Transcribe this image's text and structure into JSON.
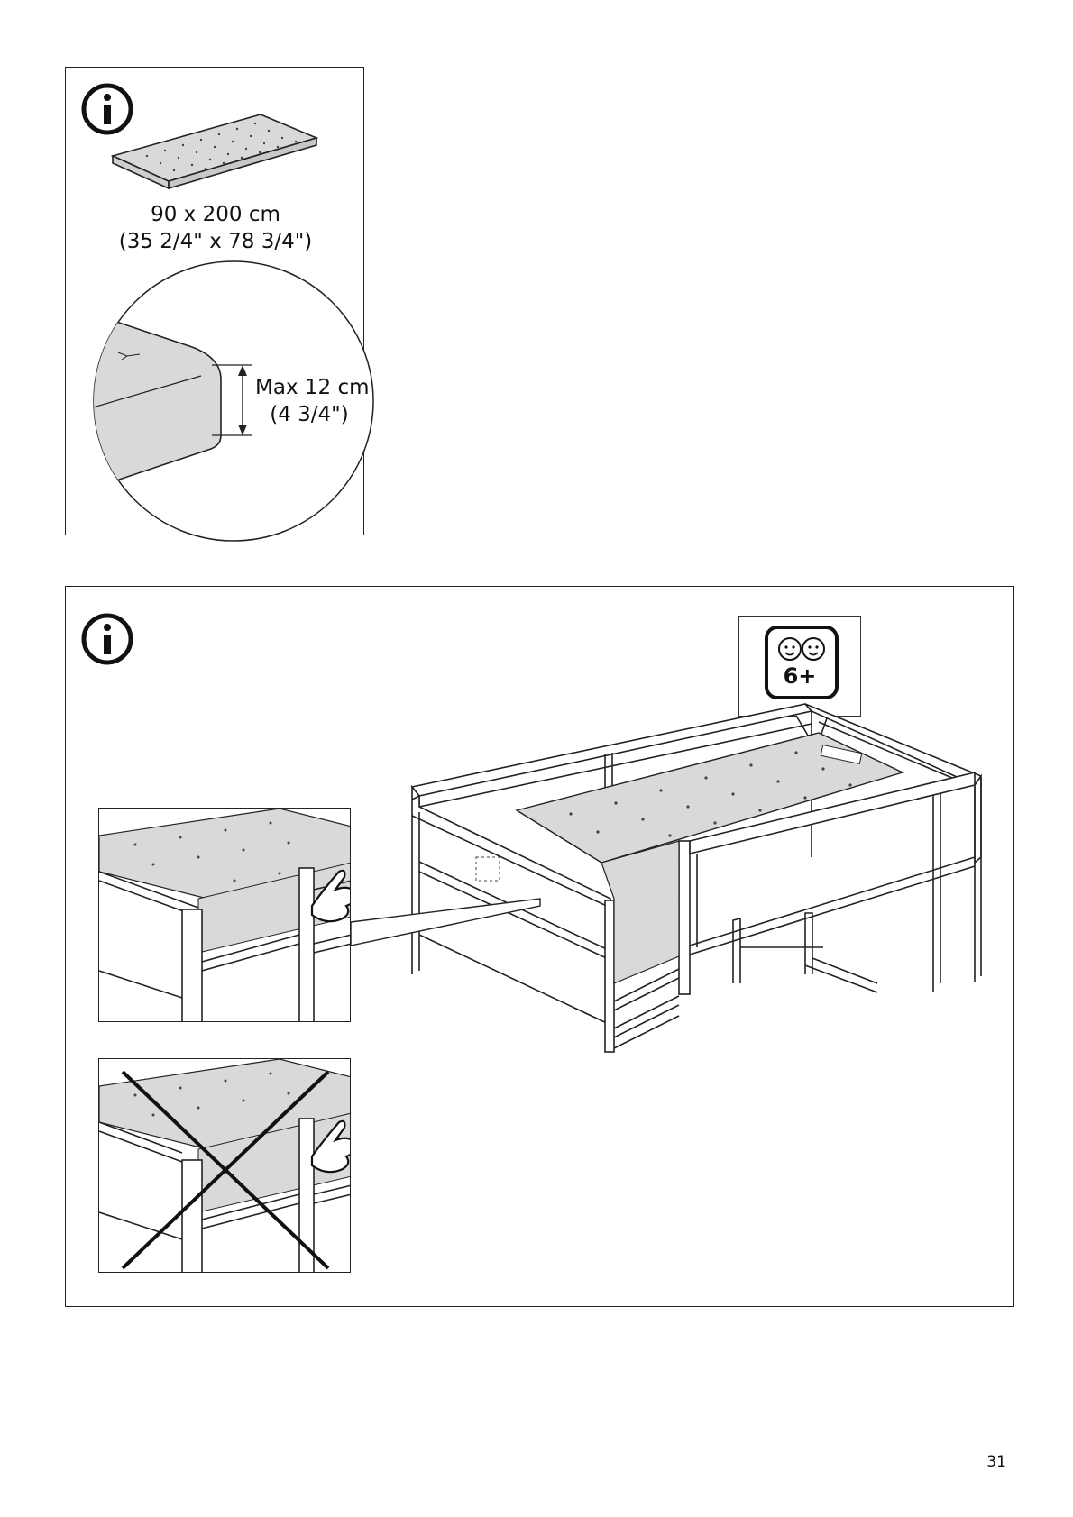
{
  "top_panel": {
    "icon": "info-icon",
    "mattress_size_metric": "90 x 200 cm",
    "mattress_size_imperial": "(35 2/4\" x 78 3/4\")",
    "max_thickness_metric": "Max 12 cm",
    "max_thickness_imperial": "(4 3/4\")"
  },
  "bottom_panel": {
    "icon": "info-icon",
    "age_label": "6+",
    "age_icon": "children-faces-icon",
    "correct_view_icon": "pointing-hand-icon",
    "wrong_view_icon": "cross-mark-icon"
  },
  "page": {
    "number": "31"
  },
  "colors": {
    "line": "#222222",
    "mattress_fill": "#d9d9d9"
  }
}
